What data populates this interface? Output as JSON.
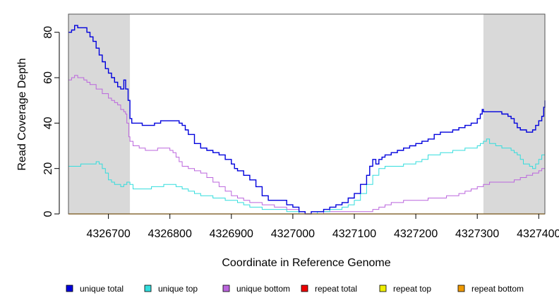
{
  "chart_data": {
    "type": "line",
    "title": "",
    "xlabel": "Coordinate in Reference Genome",
    "ylabel": "Read Coverage Depth",
    "xlim": [
      4326635,
      4327410
    ],
    "ylim": [
      0,
      88
    ],
    "x_ticks": [
      4326700,
      4326800,
      4326900,
      4327000,
      4327100,
      4327200,
      4327300,
      4327400
    ],
    "x_tick_labels": [
      "4326700",
      "4326800",
      "4326900",
      "4327000",
      "4327100",
      "4327200",
      "4327300",
      "4327400"
    ],
    "y_ticks": [
      0,
      20,
      40,
      60,
      80
    ],
    "y_tick_labels": [
      "0",
      "20",
      "40",
      "60",
      "80"
    ],
    "shaded_regions": [
      [
        4326635,
        4326735
      ],
      [
        4327310,
        4327410
      ]
    ],
    "legend_position": "bottom",
    "series": [
      {
        "name": "unique total",
        "color": "#0000dd",
        "x": [
          4326635,
          4326640,
          4326645,
          4326650,
          4326655,
          4326660,
          4326665,
          4326670,
          4326675,
          4326680,
          4326685,
          4326690,
          4326695,
          4326700,
          4326705,
          4326710,
          4326715,
          4326720,
          4326725,
          4326728,
          4326732,
          4326735,
          4326738,
          4326745,
          4326755,
          4326765,
          4326775,
          4326785,
          4326795,
          4326805,
          4326815,
          4326820,
          4326825,
          4326830,
          4326840,
          4326850,
          4326860,
          4326870,
          4326880,
          4326890,
          4326900,
          4326905,
          4326910,
          4326920,
          4326930,
          4326940,
          4326950,
          4326960,
          4326970,
          4326980,
          4326990,
          4327000,
          4327010,
          4327020,
          4327030,
          4327040,
          4327050,
          4327060,
          4327070,
          4327080,
          4327090,
          4327100,
          4327110,
          4327120,
          4327125,
          4327130,
          4327135,
          4327140,
          4327145,
          4327150,
          4327160,
          4327170,
          4327180,
          4327190,
          4327200,
          4327210,
          4327220,
          4327230,
          4327240,
          4327250,
          4327260,
          4327270,
          4327280,
          4327290,
          4327300,
          4327305,
          4327308,
          4327310,
          4327315,
          4327320,
          4327330,
          4327340,
          4327350,
          4327355,
          4327360,
          4327365,
          4327370,
          4327375,
          4327380,
          4327385,
          4327390,
          4327395,
          4327400,
          4327405,
          4327408,
          4327410
        ],
        "y": [
          80,
          81,
          83,
          82,
          82,
          82,
          80,
          78,
          76,
          73,
          70,
          67,
          64,
          62,
          60,
          58,
          56,
          55,
          59,
          55,
          50,
          42,
          40,
          40,
          39,
          39,
          40,
          41,
          41,
          41,
          40,
          39,
          37,
          35,
          31,
          29,
          28,
          27,
          26,
          24,
          22,
          20,
          19,
          17,
          15,
          12,
          8,
          6,
          6,
          6,
          4,
          3,
          1,
          0,
          1,
          1,
          2,
          3,
          4,
          5,
          7,
          9,
          13,
          17,
          21,
          24,
          22,
          24,
          25,
          26,
          27,
          28,
          29,
          30,
          31,
          32,
          33,
          35,
          36,
          36,
          37,
          38,
          39,
          40,
          42,
          44,
          46,
          45,
          45,
          45,
          45,
          44,
          43,
          42,
          40,
          38,
          37,
          37,
          36,
          36,
          37,
          39,
          41,
          43,
          47,
          50
        ]
      },
      {
        "name": "unique top",
        "color": "#33dddd",
        "x": [
          4326635,
          4326645,
          4326655,
          4326665,
          4326675,
          4326680,
          4326685,
          4326690,
          4326695,
          4326700,
          4326705,
          4326710,
          4326715,
          4326720,
          4326725,
          4326730,
          4326735,
          4326740,
          4326750,
          4326760,
          4326770,
          4326780,
          4326790,
          4326800,
          4326810,
          4326820,
          4326830,
          4326840,
          4326850,
          4326860,
          4326870,
          4326880,
          4326890,
          4326900,
          4326910,
          4326920,
          4326930,
          4326940,
          4326950,
          4326960,
          4326970,
          4326980,
          4326990,
          4327000,
          4327010,
          4327020,
          4327030,
          4327040,
          4327050,
          4327060,
          4327070,
          4327080,
          4327090,
          4327100,
          4327110,
          4327120,
          4327130,
          4327140,
          4327150,
          4327160,
          4327170,
          4327180,
          4327190,
          4327200,
          4327210,
          4327220,
          4327230,
          4327240,
          4327250,
          4327260,
          4327270,
          4327280,
          4327290,
          4327300,
          4327305,
          4327310,
          4327315,
          4327320,
          4327330,
          4327340,
          4327350,
          4327355,
          4327360,
          4327365,
          4327370,
          4327375,
          4327380,
          4327385,
          4327390,
          4327395,
          4327400,
          4327405,
          4327410
        ],
        "y": [
          21,
          21,
          22,
          22,
          22,
          23,
          22,
          20,
          18,
          15,
          14,
          13,
          13,
          12,
          13,
          14,
          13,
          11,
          11,
          11,
          12,
          12,
          13,
          13,
          12,
          11,
          10,
          9,
          8,
          8,
          7,
          7,
          6,
          6,
          5,
          4,
          3,
          3,
          2,
          2,
          2,
          2,
          1,
          1,
          0,
          0,
          0,
          1,
          1,
          2,
          2,
          3,
          4,
          6,
          9,
          13,
          17,
          20,
          21,
          21,
          21,
          22,
          22,
          23,
          24,
          26,
          26,
          27,
          27,
          28,
          28,
          29,
          29,
          30,
          31,
          32,
          33,
          31,
          30,
          29,
          29,
          28,
          27,
          26,
          24,
          22,
          22,
          21,
          20,
          22,
          24,
          26,
          30
        ]
      },
      {
        "name": "unique bottom",
        "color": "#bb66dd",
        "x": [
          4326635,
          4326640,
          4326645,
          4326650,
          4326655,
          4326660,
          4326665,
          4326670,
          4326680,
          4326690,
          4326700,
          4326705,
          4326710,
          4326715,
          4326720,
          4326725,
          4326728,
          4326730,
          4326733,
          4326735,
          4326740,
          4326750,
          4326760,
          4326770,
          4326780,
          4326790,
          4326800,
          4326805,
          4326810,
          4326815,
          4326820,
          4326830,
          4326840,
          4326850,
          4326860,
          4326870,
          4326880,
          4326890,
          4326900,
          4326910,
          4326920,
          4326930,
          4326940,
          4326950,
          4326960,
          4326970,
          4326980,
          4326990,
          4327000,
          4327010,
          4327020,
          4327030,
          4327040,
          4327050,
          4327060,
          4327070,
          4327080,
          4327090,
          4327100,
          4327110,
          4327120,
          4327130,
          4327140,
          4327150,
          4327160,
          4327170,
          4327180,
          4327190,
          4327200,
          4327210,
          4327220,
          4327230,
          4327240,
          4327250,
          4327260,
          4327270,
          4327280,
          4327290,
          4327300,
          4327310,
          4327320,
          4327330,
          4327340,
          4327350,
          4327360,
          4327370,
          4327380,
          4327390,
          4327395,
          4327400,
          4327405,
          4327410
        ],
        "y": [
          59,
          60,
          61,
          60,
          60,
          59,
          58,
          57,
          55,
          53,
          51,
          50,
          49,
          48,
          46,
          45,
          44,
          40,
          34,
          32,
          30,
          29,
          28,
          28,
          29,
          29,
          28,
          27,
          25,
          23,
          21,
          20,
          19,
          18,
          16,
          14,
          12,
          10,
          8,
          7,
          6,
          5,
          5,
          4,
          4,
          3,
          3,
          2,
          2,
          1,
          0,
          0,
          0,
          1,
          1,
          1,
          1,
          1,
          1,
          1,
          1,
          2,
          3,
          4,
          5,
          5,
          6,
          6,
          6,
          6,
          7,
          7,
          7,
          8,
          8,
          9,
          10,
          11,
          12,
          13,
          14,
          14,
          14,
          14,
          15,
          16,
          17,
          18,
          18,
          19,
          20,
          20
        ]
      },
      {
        "name": "repeat total",
        "color": "#ee0000",
        "x": [
          4326635,
          4327410
        ],
        "y": [
          0,
          0
        ]
      },
      {
        "name": "repeat top",
        "color": "#eeee00",
        "x": [
          4326635,
          4327410
        ],
        "y": [
          0,
          0
        ]
      },
      {
        "name": "repeat bottom",
        "color": "#ee9900",
        "x": [
          4326635,
          4327410
        ],
        "y": [
          0,
          0
        ]
      }
    ]
  }
}
